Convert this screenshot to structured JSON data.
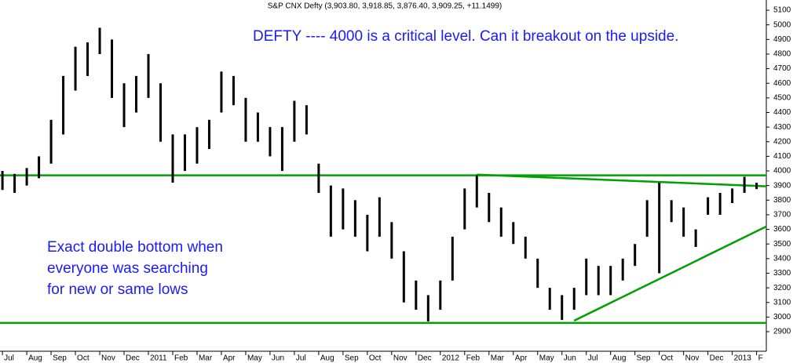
{
  "chart_data": {
    "type": "range-bar",
    "title": "S&P CNX Defty (3,903.80, 3,918.85, 3,876.40, 3,909.25, +11.1499)",
    "annotations": [
      "DEFTY ---- 4000 is a critical level. Can it breakout on the upside.",
      "Exact double bottom when",
      "everyone was searching",
      "for new or same lows"
    ],
    "color": "#000000",
    "x": [
      0,
      0.5,
      1,
      1.5,
      2,
      2.5,
      3,
      3.5,
      4,
      4.5,
      5,
      5.5,
      6,
      6.5,
      7,
      7.5,
      8,
      8.5,
      9,
      9.5,
      10,
      10.5,
      11,
      11.5,
      12,
      12.5,
      13,
      13.5,
      14,
      14.5,
      15,
      15.5,
      16,
      16.5,
      17,
      17.5,
      18,
      18.5,
      19,
      19.5,
      20,
      20.5,
      21,
      21.5,
      22,
      22.5,
      23,
      23.5,
      24,
      24.5,
      25,
      25.5,
      26,
      26.5,
      27,
      27.5,
      28,
      28.5,
      29,
      29.5,
      30,
      30.5,
      31
    ],
    "high": [
      4000,
      3980,
      4020,
      4100,
      4350,
      4650,
      4850,
      4880,
      4980,
      4900,
      4600,
      4650,
      4800,
      4600,
      4250,
      4250,
      4300,
      4350,
      4680,
      4650,
      4500,
      4400,
      4300,
      4300,
      4480,
      4450,
      4050,
      3900,
      3880,
      3800,
      3700,
      3820,
      3650,
      3450,
      3250,
      3150,
      3250,
      3550,
      3880,
      3970,
      3850,
      3750,
      3650,
      3550,
      3400,
      3200,
      3150,
      3200,
      3400,
      3350,
      3350,
      3400,
      3500,
      3800,
      3920,
      3800,
      3750,
      3600,
      3820,
      3850,
      3880,
      3960,
      3919
    ],
    "low": [
      3870,
      3850,
      3900,
      3950,
      4050,
      4250,
      4550,
      4650,
      4800,
      4500,
      4300,
      4400,
      4500,
      4200,
      3920,
      4000,
      4050,
      4150,
      4400,
      4450,
      4200,
      4200,
      4100,
      4000,
      4200,
      4250,
      3850,
      3550,
      3600,
      3550,
      3450,
      3550,
      3400,
      3100,
      3050,
      2970,
      3050,
      3250,
      3600,
      3750,
      3650,
      3550,
      3500,
      3400,
      3200,
      3050,
      2980,
      3050,
      3150,
      3150,
      3150,
      3250,
      3350,
      3550,
      3300,
      3650,
      3550,
      3480,
      3700,
      3700,
      3780,
      3850,
      3876
    ],
    "trend_lines": [
      {
        "x": [
          -0.1,
          31.4
        ],
        "y": [
          3970,
          3970
        ],
        "color": "#00a000"
      },
      {
        "x": [
          -0.1,
          31.4
        ],
        "y": [
          2960,
          2960
        ],
        "color": "#00a000"
      },
      {
        "x": [
          19.5,
          31.4
        ],
        "y": [
          3975,
          3895
        ],
        "color": "#00a000"
      },
      {
        "x": [
          23.5,
          31.4
        ],
        "y": [
          2975,
          3620
        ],
        "color": "#00a000"
      }
    ],
    "xlim": [
      -0.1,
      31.4
    ],
    "xticks": [
      {
        "value": 0,
        "label": "Jul"
      },
      {
        "value": 1,
        "label": "Aug"
      },
      {
        "value": 2,
        "label": "Sep"
      },
      {
        "value": 3,
        "label": "Oct"
      },
      {
        "value": 4,
        "label": "Nov"
      },
      {
        "value": 5,
        "label": "Dec"
      },
      {
        "value": 6,
        "label": "2011"
      },
      {
        "value": 7,
        "label": "Feb"
      },
      {
        "value": 8,
        "label": "Mar"
      },
      {
        "value": 9,
        "label": "Apr"
      },
      {
        "value": 10,
        "label": "May"
      },
      {
        "value": 11,
        "label": "Jun"
      },
      {
        "value": 12,
        "label": "Jul"
      },
      {
        "value": 13,
        "label": "Aug"
      },
      {
        "value": 14,
        "label": "Sep"
      },
      {
        "value": 15,
        "label": "Oct"
      },
      {
        "value": 16,
        "label": "Nov"
      },
      {
        "value": 17,
        "label": "Dec"
      },
      {
        "value": 18,
        "label": "2012"
      },
      {
        "value": 19,
        "label": "Feb"
      },
      {
        "value": 20,
        "label": "Mar"
      },
      {
        "value": 21,
        "label": "Apr"
      },
      {
        "value": 22,
        "label": "May"
      },
      {
        "value": 23,
        "label": "Jun"
      },
      {
        "value": 24,
        "label": "Jul"
      },
      {
        "value": 25,
        "label": "Aug"
      },
      {
        "value": 26,
        "label": "Sep"
      },
      {
        "value": 27,
        "label": "Oct"
      },
      {
        "value": 28,
        "label": "Nov"
      },
      {
        "value": 29,
        "label": "Dec"
      },
      {
        "value": 30,
        "label": "2013"
      },
      {
        "value": 31,
        "label": "F"
      }
    ],
    "ylim": [
      2766,
      5170
    ],
    "yticks": [
      2900,
      3000,
      3100,
      3200,
      3300,
      3400,
      3500,
      3600,
      3700,
      3800,
      3900,
      4000,
      4100,
      4200,
      4300,
      4400,
      4500,
      4600,
      4700,
      4800,
      4900,
      5000,
      5100
    ]
  }
}
